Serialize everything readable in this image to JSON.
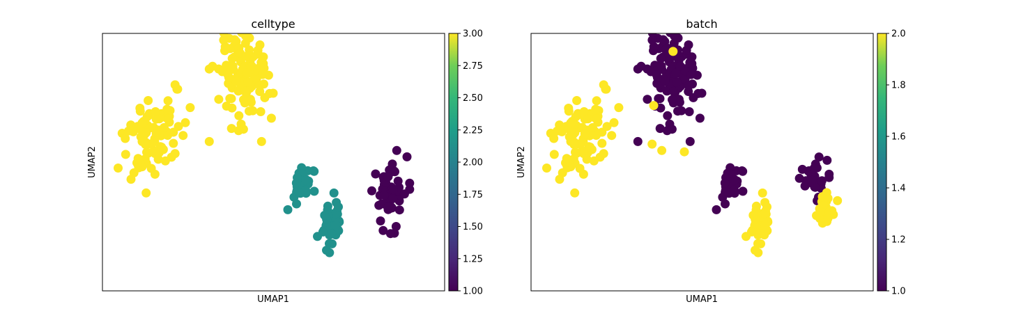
{
  "chart_data": [
    {
      "type": "scatter",
      "title": "celltype",
      "xlabel": "UMAP1",
      "ylabel": "UMAP2",
      "xticks": false,
      "yticks": false,
      "colorbar": {
        "colormap": "viridis",
        "range": [
          1.0,
          3.0
        ],
        "tick_values": [
          1.0,
          1.25,
          1.5,
          1.75,
          2.0,
          2.25,
          2.5,
          2.75,
          3.0
        ],
        "tick_labels": [
          "1.00",
          "1.25",
          "1.50",
          "1.75",
          "2.00",
          "2.25",
          "2.50",
          "2.75",
          "3.00"
        ]
      },
      "clusters": [
        {
          "id": "left",
          "center": [
            1.5,
            6.0
          ],
          "spread": [
            0.45,
            1.1
          ],
          "n": 90,
          "tilt": 0.25,
          "value": 3
        },
        {
          "id": "top",
          "center": [
            4.3,
            8.3
          ],
          "spread": [
            0.45,
            1.25
          ],
          "n": 120,
          "tilt": 0.0,
          "value": 3
        },
        {
          "id": "mid-upper",
          "center": [
            6.3,
            4.25
          ],
          "spread": [
            0.25,
            0.55
          ],
          "n": 28,
          "tilt": 0.2,
          "value": 2
        },
        {
          "id": "mid-lower",
          "center": [
            7.1,
            2.6
          ],
          "spread": [
            0.2,
            0.6
          ],
          "n": 50,
          "tilt": 0.0,
          "value": 2
        },
        {
          "id": "right",
          "center": [
            8.9,
            3.75
          ],
          "spread": [
            0.28,
            0.85
          ],
          "n": 55,
          "tilt": 0.0,
          "value": 1
        }
      ],
      "marker_color_by_value": {
        "1": "#440154",
        "2": "#21918c",
        "3": "#fde725"
      }
    },
    {
      "type": "scatter",
      "title": "batch",
      "xlabel": "UMAP1",
      "ylabel": "UMAP2",
      "xticks": false,
      "yticks": false,
      "colorbar": {
        "colormap": "viridis",
        "range": [
          1.0,
          2.0
        ],
        "tick_values": [
          1.0,
          1.2,
          1.4,
          1.6,
          1.8,
          2.0
        ],
        "tick_labels": [
          "1.0",
          "1.2",
          "1.4",
          "1.6",
          "1.8",
          "2.0"
        ]
      },
      "clusters": [
        {
          "id": "left",
          "center": [
            1.5,
            6.0
          ],
          "spread": [
            0.45,
            1.1
          ],
          "n": 90,
          "tilt": 0.25,
          "value": 2
        },
        {
          "id": "top",
          "center": [
            4.3,
            8.3
          ],
          "spread": [
            0.45,
            1.25
          ],
          "n": 120,
          "tilt": 0.0,
          "value": 1
        },
        {
          "id": "mid-upper",
          "center": [
            6.3,
            4.25
          ],
          "spread": [
            0.25,
            0.55
          ],
          "n": 28,
          "tilt": 0.2,
          "value": 1
        },
        {
          "id": "mid-lower",
          "center": [
            7.1,
            2.6
          ],
          "spread": [
            0.2,
            0.6
          ],
          "n": 50,
          "tilt": 0.0,
          "value": 2
        },
        {
          "id": "right-upper",
          "center": [
            8.75,
            4.3
          ],
          "spread": [
            0.22,
            0.45
          ],
          "n": 30,
          "tilt": 0.0,
          "value": 1
        },
        {
          "id": "right-lower",
          "center": [
            9.1,
            3.2
          ],
          "spread": [
            0.2,
            0.42
          ],
          "n": 28,
          "tilt": 0.0,
          "value": 2
        }
      ],
      "outliers": [
        {
          "x": 4.4,
          "y": 9.3,
          "value": 2
        },
        {
          "x": 3.8,
          "y": 7.2,
          "value": 2
        },
        {
          "x": 3.75,
          "y": 5.7,
          "value": 2
        },
        {
          "x": 4.05,
          "y": 5.45,
          "value": 2
        },
        {
          "x": 4.75,
          "y": 5.4,
          "value": 2
        }
      ],
      "marker_color_by_value": {
        "1": "#440154",
        "2": "#fde725"
      }
    }
  ]
}
